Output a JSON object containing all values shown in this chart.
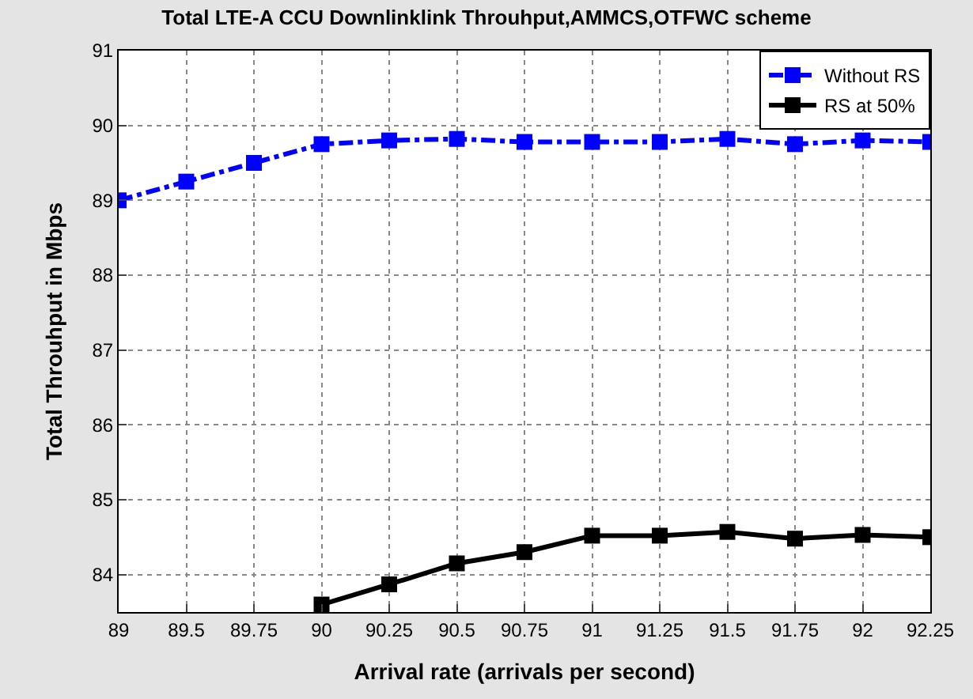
{
  "chart_data": {
    "type": "line",
    "title": "Total LTE-A CCU Downlinklink Throuhput,AMMCS,OTFWC scheme",
    "xlabel": "Arrival rate (arrivals per second)",
    "ylabel": "Total Throuhput in Mbps",
    "categories": [
      "89",
      "89.5",
      "89.75",
      "90",
      "90.25",
      "90.5",
      "90.75",
      "91",
      "91.25",
      "91.5",
      "91.75",
      "92",
      "92.25"
    ],
    "series": [
      {
        "name": "Without RS",
        "color": "#0000ff",
        "line_style": "dashed",
        "values": [
          89.0,
          89.25,
          89.5,
          89.75,
          89.8,
          89.82,
          89.78,
          89.78,
          89.78,
          89.82,
          89.75,
          89.8,
          89.78
        ]
      },
      {
        "name": "RS at 50%",
        "color": "#000000",
        "line_style": "solid",
        "values": [
          null,
          null,
          null,
          83.6,
          83.87,
          84.15,
          84.3,
          84.52,
          84.52,
          84.57,
          84.48,
          84.53,
          84.5
        ]
      }
    ],
    "ylim": [
      83.5,
      91
    ],
    "yticks": [
      84,
      85,
      86,
      87,
      88,
      89,
      90,
      91
    ],
    "grid": true,
    "legend": "top right",
    "marker": "square"
  }
}
